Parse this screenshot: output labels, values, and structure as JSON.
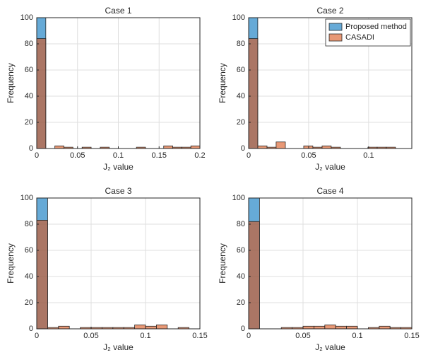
{
  "chart_data": [
    {
      "type": "histogram",
      "title": "Case 1",
      "x_label": "J₂ value",
      "y_label": "Frequency",
      "xlim": [
        0,
        0.2
      ],
      "xticks": [
        0,
        0.05,
        0.1,
        0.15,
        0.2
      ],
      "ylim": [
        0,
        100
      ],
      "yticks": [
        0,
        20,
        40,
        60,
        80,
        100
      ],
      "grid": true,
      "series": [
        {
          "name": "Proposed method",
          "color": "#0072bd",
          "bins": [
            0,
            0.0111
          ],
          "values": [
            100
          ]
        },
        {
          "name": "CASADI",
          "color": "#d95319",
          "bins": [
            0,
            0.0111,
            0.0222,
            0.0333,
            0.0444,
            0.0556,
            0.0667,
            0.0778,
            0.0889,
            0.1,
            0.1111,
            0.1222,
            0.1333,
            0.1444,
            0.1556,
            0.1667,
            0.1778,
            0.1889,
            0.2
          ],
          "values": [
            84,
            0,
            2,
            1,
            0,
            1,
            0,
            1,
            0,
            0,
            0,
            1,
            0,
            0,
            2,
            1,
            1,
            2
          ]
        }
      ]
    },
    {
      "type": "histogram",
      "title": "Case 2",
      "x_label": "J₂ value",
      "y_label": "Frequency",
      "xlim": [
        0,
        0.136
      ],
      "xticks": [
        0,
        0.05,
        0.1
      ],
      "ylim": [
        0,
        100
      ],
      "yticks": [
        0,
        20,
        40,
        60,
        80,
        100
      ],
      "grid": true,
      "legend": "northeast",
      "series": [
        {
          "name": "Proposed method",
          "color": "#0072bd",
          "bins": [
            0,
            0.0076
          ],
          "values": [
            100
          ]
        },
        {
          "name": "CASADI",
          "color": "#d95319",
          "bins": [
            0,
            0.0076,
            0.0153,
            0.0229,
            0.0306,
            0.0382,
            0.0459,
            0.0535,
            0.0612,
            0.0688,
            0.0765,
            0.0841,
            0.0918,
            0.0994,
            0.1071,
            0.1147,
            0.1224
          ],
          "values": [
            84,
            2,
            1,
            5,
            0,
            0,
            2,
            1,
            2,
            1,
            0,
            0,
            0,
            1,
            1,
            1
          ]
        }
      ]
    },
    {
      "type": "histogram",
      "title": "Case 3",
      "x_label": "J₂ value",
      "y_label": "Frequency",
      "xlim": [
        0,
        0.15
      ],
      "xticks": [
        0,
        0.05,
        0.1,
        0.15
      ],
      "ylim": [
        0,
        100
      ],
      "yticks": [
        0,
        20,
        40,
        60,
        80,
        100
      ],
      "grid": true,
      "series": [
        {
          "name": "Proposed method",
          "color": "#0072bd",
          "bins": [
            0,
            0.01
          ],
          "values": [
            100
          ]
        },
        {
          "name": "CASADI",
          "color": "#d95319",
          "bins": [
            0,
            0.01,
            0.02,
            0.03,
            0.04,
            0.05,
            0.06,
            0.07,
            0.08,
            0.09,
            0.1,
            0.11,
            0.12,
            0.13,
            0.14
          ],
          "values": [
            83,
            1,
            2,
            0,
            1,
            1,
            1,
            1,
            1,
            3,
            2,
            3,
            0,
            1
          ]
        }
      ]
    },
    {
      "type": "histogram",
      "title": "Case 4",
      "x_label": "J₂ value",
      "y_label": "Frequency",
      "xlim": [
        0,
        0.15
      ],
      "xticks": [
        0,
        0.05,
        0.1,
        0.15
      ],
      "ylim": [
        0,
        100
      ],
      "yticks": [
        0,
        20,
        40,
        60,
        80,
        100
      ],
      "grid": true,
      "series": [
        {
          "name": "Proposed method",
          "color": "#0072bd",
          "bins": [
            0,
            0.01
          ],
          "values": [
            100
          ]
        },
        {
          "name": "CASADI",
          "color": "#d95319",
          "bins": [
            0,
            0.01,
            0.02,
            0.03,
            0.04,
            0.05,
            0.06,
            0.07,
            0.08,
            0.09,
            0.1,
            0.11,
            0.12,
            0.13,
            0.14,
            0.15
          ],
          "values": [
            82,
            0,
            0,
            1,
            1,
            2,
            2,
            3,
            2,
            2,
            0,
            1,
            2,
            1,
            1
          ]
        }
      ]
    }
  ]
}
